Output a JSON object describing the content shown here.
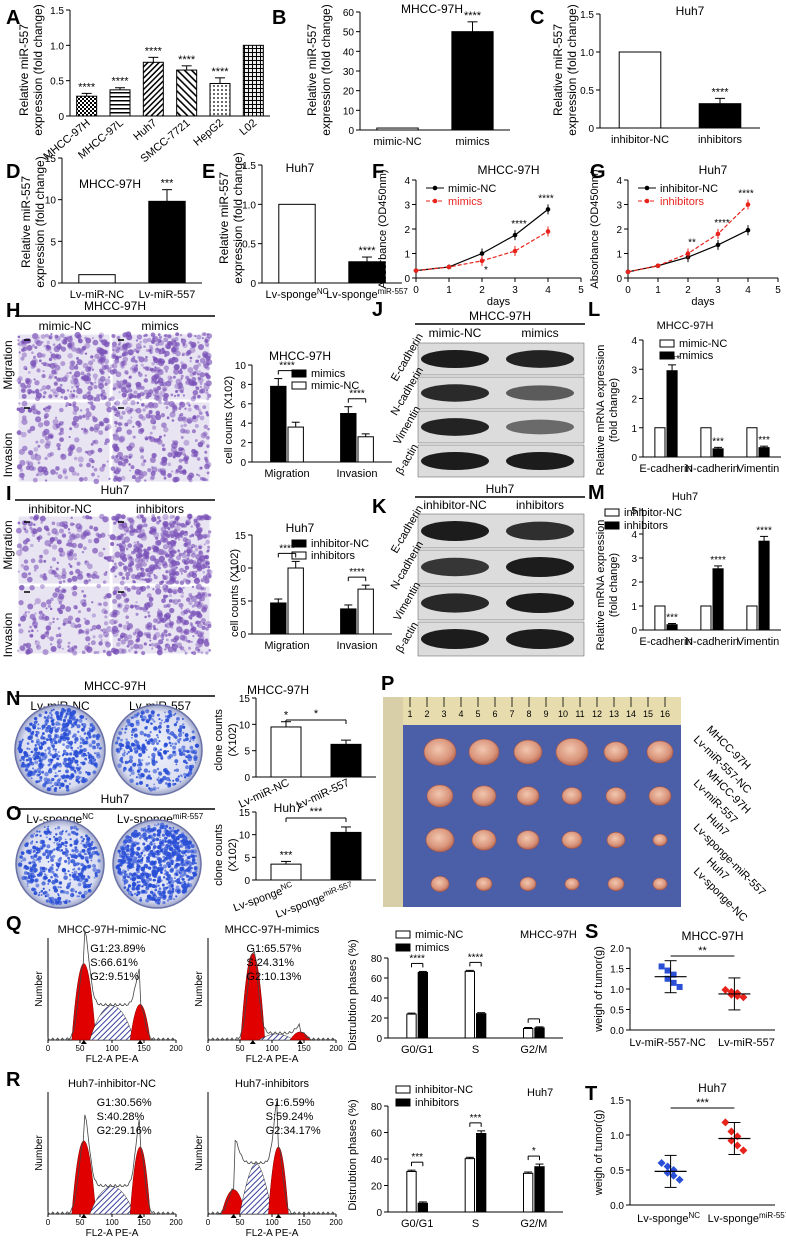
{
  "panel_letters": {
    "A": "A",
    "B": "B",
    "C": "C",
    "D": "D",
    "E": "E",
    "F": "F",
    "G": "G",
    "H": "H",
    "I": "I",
    "J": "J",
    "K": "K",
    "L": "L",
    "M": "M",
    "N": "N",
    "O": "O",
    "P": "P",
    "Q": "Q",
    "R": "R",
    "S": "S",
    "T": "T"
  },
  "colors": {
    "black": "#000000",
    "red": "#e8231c",
    "blue": "#2a4fd6",
    "purple_stain": "#7a52b8",
    "blot_bg": "#dcdcdc",
    "tumor": "#d9a08a",
    "blue_cloth": "#4a5fa8",
    "flow_fill": "#e00000"
  },
  "text": {
    "ylab_rel_557_1": "Relative miR-557",
    "ylab_rel_557_2": "expression (fold change)",
    "mhcc": "MHCC-97H",
    "huh7": "Huh7",
    "ylab_abs": "Absorbance (OD450nm)",
    "xlab_days": "days",
    "mimic_nc": "mimic-NC",
    "mimics": "mimics",
    "inhibitor_nc": "inhibitor-NC",
    "inhibitors": "inhibitors",
    "migration": "Migration",
    "invasion": "Invasion",
    "cell_counts": "cell counts (X10",
    "ecad": "E-cadherin",
    "ncad": "N-cadherin",
    "vim": "Vimentin",
    "bactin": "β-actin",
    "ylab_mrna_1": "Relative mRNA expression",
    "ylab_mrna_2": "(fold change)",
    "lv_mir_nc": "Lv-miR-NC",
    "lv_mir_557": "Lv-miR-557",
    "lv_sponge_nc": "Lv-sponge",
    "lv_sponge_mir": "Lv-sponge",
    "sup_nc": "NC",
    "sup_mir": "miR-557",
    "clone_counts_1": "clone counts",
    "clone_counts_2": "(X10",
    "p_label_1a": "MHCC-97H",
    "p_label_1b": "Lv-miR-557-NC",
    "p_label_2a": "MHCC-97H",
    "p_label_2b": "Lv-miR-557",
    "p_label_3a": "Huh7",
    "p_label_3b": "Lv-sponge-miR-557",
    "p_label_4a": "Huh7",
    "p_label_4b": "Lv-sponge-NC",
    "flow_number": "Number",
    "flow_x": "FL2-A PE-A",
    "dist_phases": "Distrubtion phases (%)",
    "weigh": "weigh of tumor(g)",
    "lv_557_nc": "Lv-miR-557-NC",
    "ruler": [
      "1",
      "2",
      "3",
      "4",
      "5",
      "6",
      "7",
      "8",
      "9",
      "10",
      "11",
      "12",
      "13",
      "14",
      "15",
      "16"
    ]
  },
  "flow": {
    "q1": {
      "title": "MHCC-97H-mimic-NC",
      "g1": "G1:23.89%",
      "s": "S:66.61%",
      "g2": "G2:9.51%"
    },
    "q2": {
      "title": "MHCC-97H-mimics",
      "g1": "G1:65.57%",
      "s": "S:24.31%",
      "g2": "G2:10.13%"
    },
    "r1": {
      "title": "Huh7-inhibitor-NC",
      "g1": "G1:30.56%",
      "s": "S:40.28%",
      "g2": "G2:29.16%"
    },
    "r2": {
      "title": "Huh7-inhibitors",
      "g1": "G1:6.59%",
      "s": "S:59.24%",
      "g2": "G2:34.17%"
    }
  },
  "chart_data": [
    {
      "id": "A",
      "type": "bar",
      "categories": [
        "MHCC-97H",
        "MHCC-97L",
        "Huh7",
        "SMCC-7721",
        "HepG2",
        "L02"
      ],
      "values": [
        0.28,
        0.37,
        0.76,
        0.65,
        0.46,
        1.0
      ],
      "ylim": [
        0,
        1.5
      ],
      "yticks": [
        "0",
        "0.5",
        "1.0",
        "1.5"
      ],
      "sig": [
        "****",
        "****",
        "****",
        "****",
        "****",
        ""
      ]
    },
    {
      "id": "B",
      "type": "bar",
      "categories": [
        "mimic-NC",
        "mimics"
      ],
      "values": [
        1,
        50
      ],
      "ylim": [
        0,
        60
      ],
      "yticks": [
        "0",
        "10",
        "20",
        "30",
        "40",
        "50",
        "60"
      ],
      "sig": [
        "",
        "****"
      ],
      "title": "MHCC-97H"
    },
    {
      "id": "C",
      "type": "bar",
      "categories": [
        "inhibitor-NC",
        "inhibitors"
      ],
      "values": [
        1.0,
        0.32
      ],
      "ylim": [
        0,
        1.5
      ],
      "yticks": [
        "0",
        "0.5",
        "1.0",
        "1.5"
      ],
      "sig": [
        "",
        "****"
      ],
      "title": "Huh7"
    },
    {
      "id": "D",
      "type": "bar",
      "categories": [
        "Lv-miR-NC",
        "Lv-miR-557"
      ],
      "values": [
        1.0,
        9.8
      ],
      "ylim": [
        0,
        15
      ],
      "yticks": [
        "0",
        "5",
        "10",
        "15"
      ],
      "sig": [
        "",
        "***"
      ],
      "title": "MHCC-97H"
    },
    {
      "id": "E",
      "type": "bar",
      "categories": [
        "Lv-sponge NC",
        "Lv-sponge miR-557"
      ],
      "values": [
        1.0,
        0.27
      ],
      "ylim": [
        0,
        1.5
      ],
      "yticks": [
        "0",
        "0.5",
        "1.0",
        "1.5"
      ],
      "sig": [
        "",
        "****"
      ],
      "title": "Huh7"
    },
    {
      "id": "F",
      "type": "line",
      "x": [
        0,
        1,
        2,
        3,
        4
      ],
      "series": [
        {
          "name": "mimic-NC",
          "values": [
            0.3,
            0.45,
            1.0,
            1.75,
            2.8
          ]
        },
        {
          "name": "mimics",
          "values": [
            0.3,
            0.45,
            0.7,
            1.1,
            1.9
          ]
        }
      ],
      "ylim": [
        0,
        4
      ],
      "xlim": [
        0,
        5
      ],
      "title": "MHCC-97H",
      "xlabel": "days",
      "ylabel": "Absorbance (OD450nm)",
      "sig": [
        "",
        "",
        "*",
        "****",
        "****"
      ]
    },
    {
      "id": "G",
      "type": "line",
      "x": [
        0,
        1,
        2,
        3,
        4
      ],
      "series": [
        {
          "name": "inhibitor-NC",
          "values": [
            0.25,
            0.5,
            0.85,
            1.35,
            1.95
          ]
        },
        {
          "name": "inhibitors",
          "values": [
            0.25,
            0.5,
            1.0,
            1.8,
            3.0
          ]
        }
      ],
      "ylim": [
        0,
        4
      ],
      "xlim": [
        0,
        5
      ],
      "title": "Huh7",
      "xlabel": "days",
      "ylabel": "Absorbance (OD450nm)",
      "sig": [
        "",
        "",
        "**",
        "****",
        "****"
      ]
    },
    {
      "id": "H",
      "type": "bar",
      "categories": [
        "Migration",
        "Invasion"
      ],
      "series": [
        {
          "name": "mimics",
          "values": [
            7.8,
            5.0
          ]
        },
        {
          "name": "mimic-NC",
          "values": [
            3.6,
            2.6
          ]
        }
      ],
      "ylim": [
        0,
        10
      ],
      "yticks": [
        "0",
        "2",
        "4",
        "6",
        "8",
        "10"
      ],
      "sig": [
        "****",
        "****"
      ],
      "title": "MHCC-97H"
    },
    {
      "id": "I",
      "type": "bar",
      "categories": [
        "Migration",
        "Invasion"
      ],
      "series": [
        {
          "name": "inhibitor-NC",
          "values": [
            4.7,
            3.8
          ]
        },
        {
          "name": "inhibitors",
          "values": [
            10.0,
            6.8
          ]
        }
      ],
      "ylim": [
        0,
        15
      ],
      "yticks": [
        "0",
        "5",
        "10",
        "15"
      ],
      "sig": [
        "****",
        "****"
      ],
      "title": "Huh7"
    },
    {
      "id": "L",
      "type": "bar",
      "categories": [
        "E-cadherin",
        "N-cadherin",
        "Vimentin"
      ],
      "series": [
        {
          "name": "mimic-NC",
          "values": [
            1,
            1,
            1
          ]
        },
        {
          "name": "mimics",
          "values": [
            2.95,
            0.28,
            0.32
          ]
        }
      ],
      "ylim": [
        0,
        4
      ],
      "yticks": [
        "0",
        "1",
        "2",
        "3",
        "4"
      ],
      "sig": [
        "****",
        "***",
        "***"
      ],
      "title": "MHCC-97H"
    },
    {
      "id": "M",
      "type": "bar",
      "categories": [
        "E-cadherin",
        "N-cadherin",
        "Vimentin"
      ],
      "series": [
        {
          "name": "inhibitor-NC",
          "values": [
            1,
            1,
            1
          ]
        },
        {
          "name": "inhibitors",
          "values": [
            0.22,
            2.55,
            3.7
          ]
        }
      ],
      "ylim": [
        0,
        5
      ],
      "yticks": [
        "0",
        "1",
        "2",
        "3",
        "4",
        "5"
      ],
      "sig": [
        "***",
        "****",
        "****"
      ],
      "title": "Huh7"
    },
    {
      "id": "N",
      "type": "bar",
      "categories": [
        "Lv-miR-NC",
        "Lv-miR-557"
      ],
      "values": [
        9.5,
        6.2
      ],
      "ylim": [
        0,
        15
      ],
      "yticks": [
        "0",
        "5",
        "10",
        "15"
      ],
      "sig": [
        "*"
      ],
      "title": "MHCC-97H"
    },
    {
      "id": "O",
      "type": "bar",
      "categories": [
        "Lv-sponge NC",
        "Lv-sponge miR-557"
      ],
      "values": [
        3.5,
        10.5
      ],
      "ylim": [
        0,
        15
      ],
      "yticks": [
        "0",
        "5",
        "10",
        "15"
      ],
      "sig": [
        "***"
      ],
      "title": "Huh7"
    },
    {
      "id": "Q",
      "type": "bar",
      "categories": [
        "G0/G1",
        "S",
        "G2/M"
      ],
      "series": [
        {
          "name": "mimic-NC",
          "values": [
            23.89,
            66.61,
            9.51
          ]
        },
        {
          "name": "mimics",
          "values": [
            65.57,
            24.31,
            10.13
          ]
        }
      ],
      "ylim": [
        0,
        80
      ],
      "yticks": [
        "0",
        "20",
        "40",
        "60",
        "80"
      ],
      "sig": [
        "****",
        "****",
        ""
      ],
      "title": "MHCC-97H"
    },
    {
      "id": "R",
      "type": "bar",
      "categories": [
        "G0/G1",
        "S",
        "G2/M"
      ],
      "series": [
        {
          "name": "inhibitor-NC",
          "values": [
            30.56,
            40.28,
            29.16
          ]
        },
        {
          "name": "inhibitors",
          "values": [
            6.59,
            59.24,
            34.17
          ]
        }
      ],
      "ylim": [
        0,
        80
      ],
      "yticks": [
        "0",
        "20",
        "40",
        "60",
        "80"
      ],
      "sig": [
        "***",
        "***",
        "*"
      ],
      "title": "Huh7"
    },
    {
      "id": "S",
      "type": "scatter",
      "categories": [
        "Lv-miR-557-NC",
        "Lv-miR-557"
      ],
      "series": [
        {
          "name": "Lv-miR-557-NC",
          "values": [
            1.55,
            1.45,
            1.35,
            1.25,
            1.15,
            1.05
          ]
        },
        {
          "name": "Lv-miR-557",
          "values": [
            0.98,
            0.93,
            0.9,
            0.86,
            0.83,
            0.8
          ]
        }
      ],
      "means": [
        1.3,
        0.88
      ],
      "ylim": [
        0,
        2.0
      ],
      "yticks": [
        "0.0",
        "0.5",
        "1.0",
        "1.5",
        "2.0"
      ],
      "sig": [
        "**"
      ],
      "title": "MHCC-97H"
    },
    {
      "id": "T",
      "type": "scatter",
      "categories": [
        "Lv-sponge NC",
        "Lv-sponge miR-557"
      ],
      "series": [
        {
          "name": "Lv-sponge NC",
          "values": [
            0.6,
            0.55,
            0.5,
            0.46,
            0.42,
            0.36
          ]
        },
        {
          "name": "Lv-sponge miR-557",
          "values": [
            1.18,
            1.05,
            0.98,
            0.92,
            0.85,
            0.78
          ]
        }
      ],
      "means": [
        0.48,
        0.95
      ],
      "ylim": [
        0,
        1.5
      ],
      "yticks": [
        "0.0",
        "0.5",
        "1.0",
        "1.5"
      ],
      "sig": [
        "***"
      ],
      "title": "Huh7"
    }
  ]
}
